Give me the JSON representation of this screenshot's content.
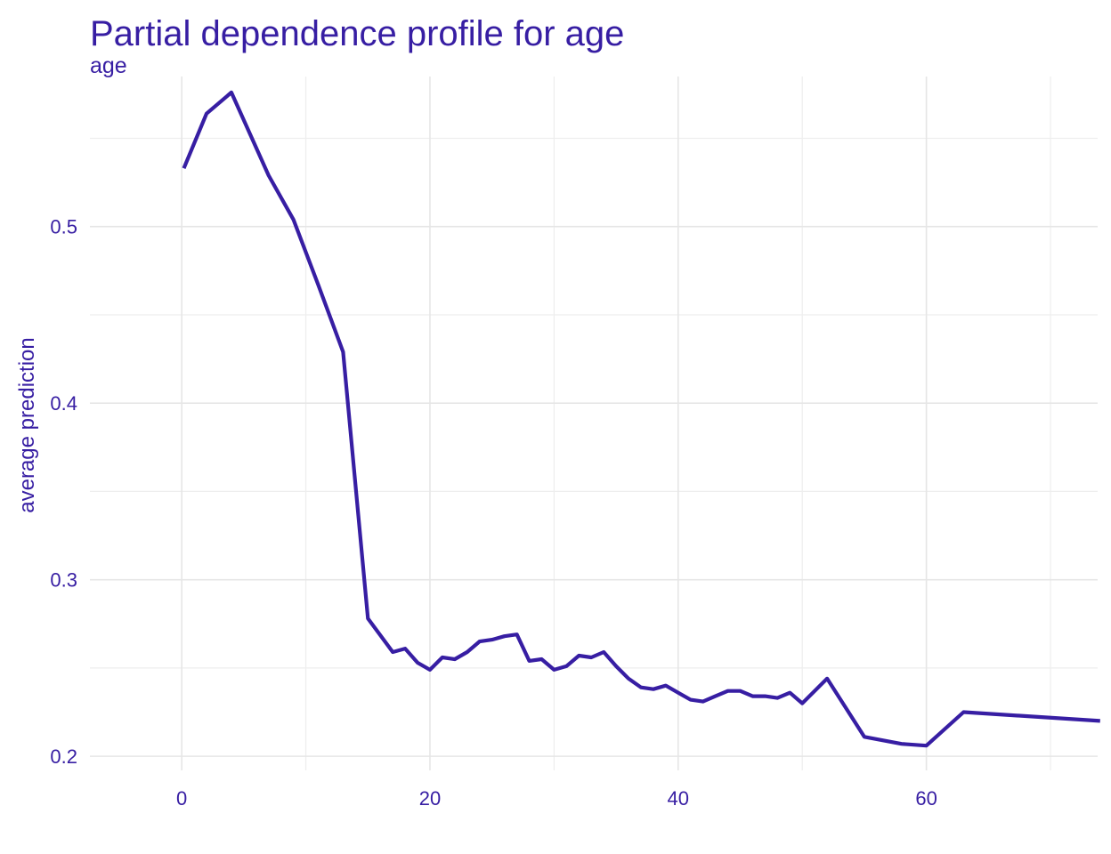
{
  "chart_data": {
    "type": "line",
    "title": "Partial dependence profile for age",
    "subtitle": "age",
    "xlabel": "",
    "ylabel": "average prediction",
    "xlim": [
      -7.4,
      73.8
    ],
    "ylim": [
      0.192,
      0.585
    ],
    "x_ticks": [
      0,
      20,
      40,
      60
    ],
    "y_ticks": [
      0.2,
      0.3,
      0.4,
      0.5
    ],
    "x_tick_labels": [
      "0",
      "20",
      "40",
      "60"
    ],
    "y_tick_labels": [
      "0.2",
      "0.3",
      "0.4",
      "0.5"
    ],
    "grid": true,
    "line_color": "#371ea3",
    "series": [
      {
        "x": [
          0.17,
          2,
          4,
          7,
          9,
          11,
          13,
          15,
          17,
          18,
          19,
          20,
          21,
          22,
          23,
          24,
          25,
          26,
          27,
          28,
          29,
          30,
          31,
          32,
          33,
          34,
          35,
          36,
          37,
          38,
          39,
          40,
          41,
          42,
          43,
          44,
          45,
          46,
          47,
          48,
          49,
          50,
          52,
          55,
          58,
          60,
          63,
          74
        ],
        "y": [
          0.533,
          0.564,
          0.576,
          0.529,
          0.504,
          0.467,
          0.429,
          0.278,
          0.259,
          0.261,
          0.253,
          0.249,
          0.256,
          0.255,
          0.259,
          0.265,
          0.266,
          0.268,
          0.269,
          0.254,
          0.255,
          0.249,
          0.251,
          0.257,
          0.256,
          0.259,
          0.251,
          0.244,
          0.239,
          0.238,
          0.24,
          0.236,
          0.232,
          0.231,
          0.234,
          0.237,
          0.237,
          0.234,
          0.234,
          0.233,
          0.236,
          0.23,
          0.244,
          0.211,
          0.207,
          0.206,
          0.225,
          0.22
        ]
      }
    ]
  }
}
